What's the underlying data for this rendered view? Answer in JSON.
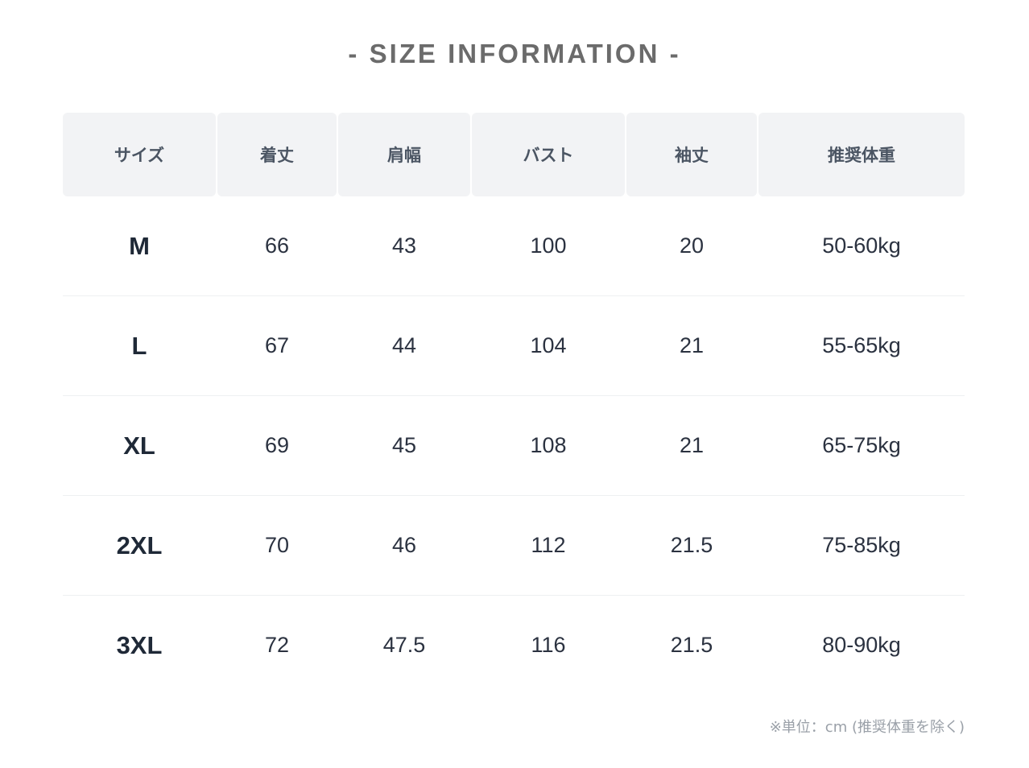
{
  "title": "- SIZE INFORMATION -",
  "table": {
    "headers": [
      "サイズ",
      "着丈",
      "肩幅",
      "バスト",
      "袖丈",
      "推奨体重"
    ],
    "rows": [
      [
        "M",
        "66",
        "43",
        "100",
        "20",
        "50-60kg"
      ],
      [
        "L",
        "67",
        "44",
        "104",
        "21",
        "55-65kg"
      ],
      [
        "XL",
        "69",
        "45",
        "108",
        "21",
        "65-75kg"
      ],
      [
        "2XL",
        "70",
        "46",
        "112",
        "21.5",
        "75-85kg"
      ],
      [
        "3XL",
        "72",
        "47.5",
        "116",
        "21.5",
        "80-90kg"
      ]
    ]
  },
  "note": "※単位：cm (推奨体重を除く)",
  "colors": {
    "header_bg": "#f2f3f5",
    "title": "#6b6b6b",
    "note": "#9aa0a8"
  }
}
